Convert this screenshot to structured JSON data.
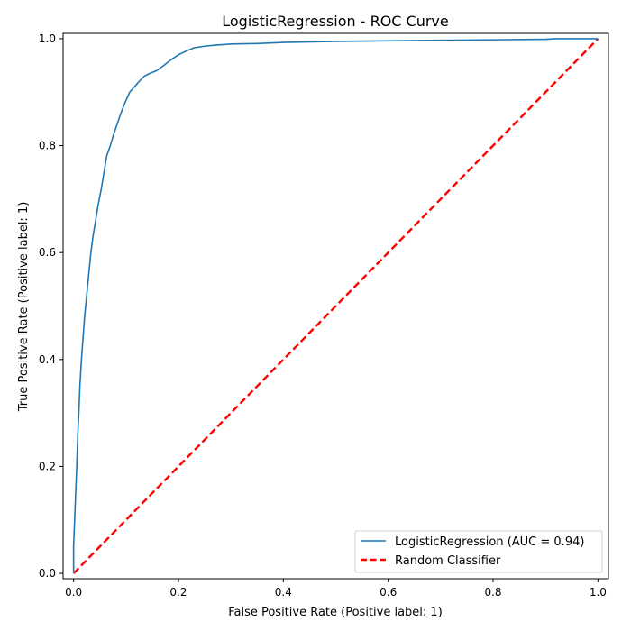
{
  "chart_data": {
    "type": "line",
    "title": "LogisticRegression - ROC Curve",
    "xlabel": "False Positive Rate (Positive label: 1)",
    "ylabel": "True Positive Rate (Positive label: 1)",
    "xlim": [
      -0.02,
      1.02
    ],
    "ylim": [
      -0.01,
      1.01
    ],
    "x_ticks": [
      0.0,
      0.2,
      0.4,
      0.6,
      0.8,
      1.0
    ],
    "y_ticks": [
      0.0,
      0.2,
      0.4,
      0.6,
      0.8,
      1.0
    ],
    "x_tick_labels": [
      "0.0",
      "0.2",
      "0.4",
      "0.6",
      "0.8",
      "1.0"
    ],
    "y_tick_labels": [
      "0.0",
      "0.2",
      "0.4",
      "0.6",
      "0.8",
      "1.0"
    ],
    "grid": false,
    "legend_position": "lower-right",
    "series": [
      {
        "name": "LogisticRegression (AUC = 0.94)",
        "color": "#1f77b4",
        "style": "solid",
        "x": [
          0.0,
          0.0,
          0.002,
          0.004,
          0.006,
          0.008,
          0.01,
          0.012,
          0.015,
          0.018,
          0.021,
          0.025,
          0.029,
          0.033,
          0.037,
          0.042,
          0.047,
          0.053,
          0.058,
          0.063,
          0.07,
          0.076,
          0.083,
          0.09,
          0.098,
          0.107,
          0.116,
          0.125,
          0.135,
          0.145,
          0.158,
          0.172,
          0.185,
          0.2,
          0.215,
          0.23,
          0.25,
          0.27,
          0.3,
          0.35,
          0.4,
          0.5,
          0.6,
          0.7,
          0.8,
          0.9,
          0.92,
          1.0
        ],
        "y": [
          0.0,
          0.05,
          0.1,
          0.15,
          0.2,
          0.26,
          0.3,
          0.35,
          0.4,
          0.44,
          0.48,
          0.52,
          0.56,
          0.6,
          0.63,
          0.66,
          0.69,
          0.72,
          0.75,
          0.78,
          0.8,
          0.82,
          0.84,
          0.86,
          0.88,
          0.9,
          0.91,
          0.92,
          0.93,
          0.935,
          0.94,
          0.95,
          0.96,
          0.97,
          0.977,
          0.983,
          0.986,
          0.988,
          0.99,
          0.991,
          0.993,
          0.995,
          0.996,
          0.997,
          0.998,
          0.999,
          1.0,
          1.0
        ]
      },
      {
        "name": "Random Classifier",
        "color": "#ff0000",
        "style": "dashed",
        "x": [
          0.0,
          1.0
        ],
        "y": [
          0.0,
          1.0
        ]
      }
    ]
  }
}
